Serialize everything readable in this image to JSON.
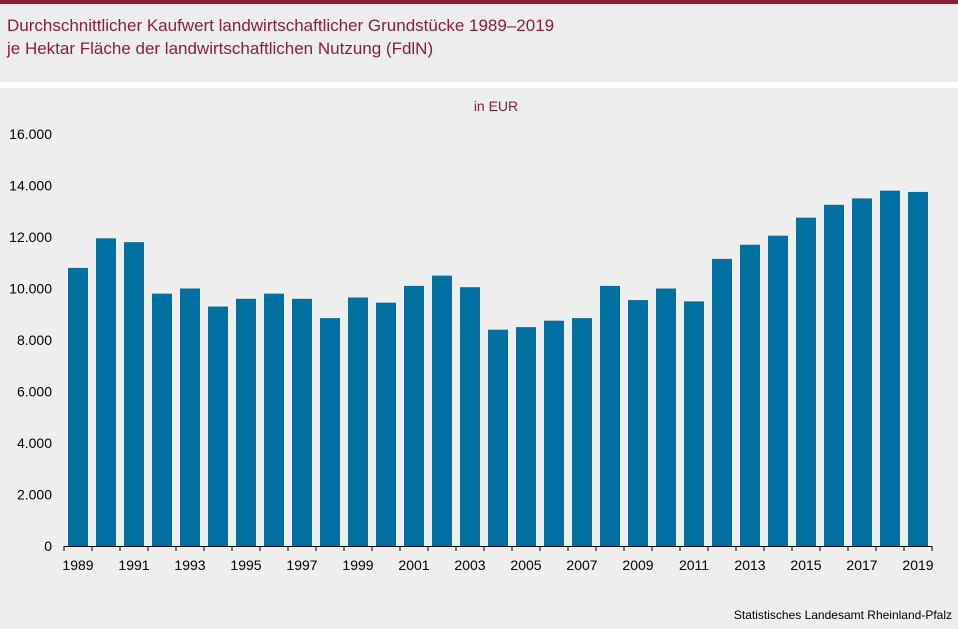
{
  "header": {
    "title_line1": "Durchschnittlicher Kaufwert landwirtschaftlicher Grundstücke 1989–2019",
    "title_line2": "je Hektar Fläche der landwirtschaftlichen Nutzung (FdlN)"
  },
  "source": "Statistisches Landesamt Rheinland-Pfalz",
  "colors": {
    "accent": "#8b1f3a",
    "bar": "#0071a0",
    "background": "#edeeed"
  },
  "chart_data": {
    "type": "bar",
    "unit_label": "in EUR",
    "categories": [
      "1989",
      "1990",
      "1991",
      "1992",
      "1993",
      "1994",
      "1995",
      "1996",
      "1997",
      "1998",
      "1999",
      "2000",
      "2001",
      "2002",
      "2003",
      "2004",
      "2005",
      "2006",
      "2007",
      "2008",
      "2009",
      "2010",
      "2011",
      "2012",
      "2013",
      "2014",
      "2015",
      "2016",
      "2017",
      "2018",
      "2019"
    ],
    "x_tick_labels": [
      "1989",
      "1991",
      "1993",
      "1995",
      "1997",
      "1999",
      "2001",
      "2003",
      "2005",
      "2007",
      "2009",
      "2011",
      "2013",
      "2015",
      "2017",
      "2019"
    ],
    "values": [
      10800,
      11950,
      11800,
      9800,
      10000,
      9300,
      9600,
      9800,
      9600,
      8850,
      9650,
      9450,
      10100,
      10500,
      10050,
      8400,
      8500,
      8750,
      8850,
      10100,
      9550,
      10000,
      9500,
      11150,
      11700,
      12050,
      12750,
      13250,
      13500,
      13800,
      13750
    ],
    "y_tick_labels": [
      "0",
      "2.000",
      "4.000",
      "6.000",
      "8.000",
      "10.000",
      "12.000",
      "14.000",
      "16.000"
    ],
    "ylim": [
      0,
      16000
    ],
    "y_step": 2000,
    "grid": false,
    "legend": false
  }
}
